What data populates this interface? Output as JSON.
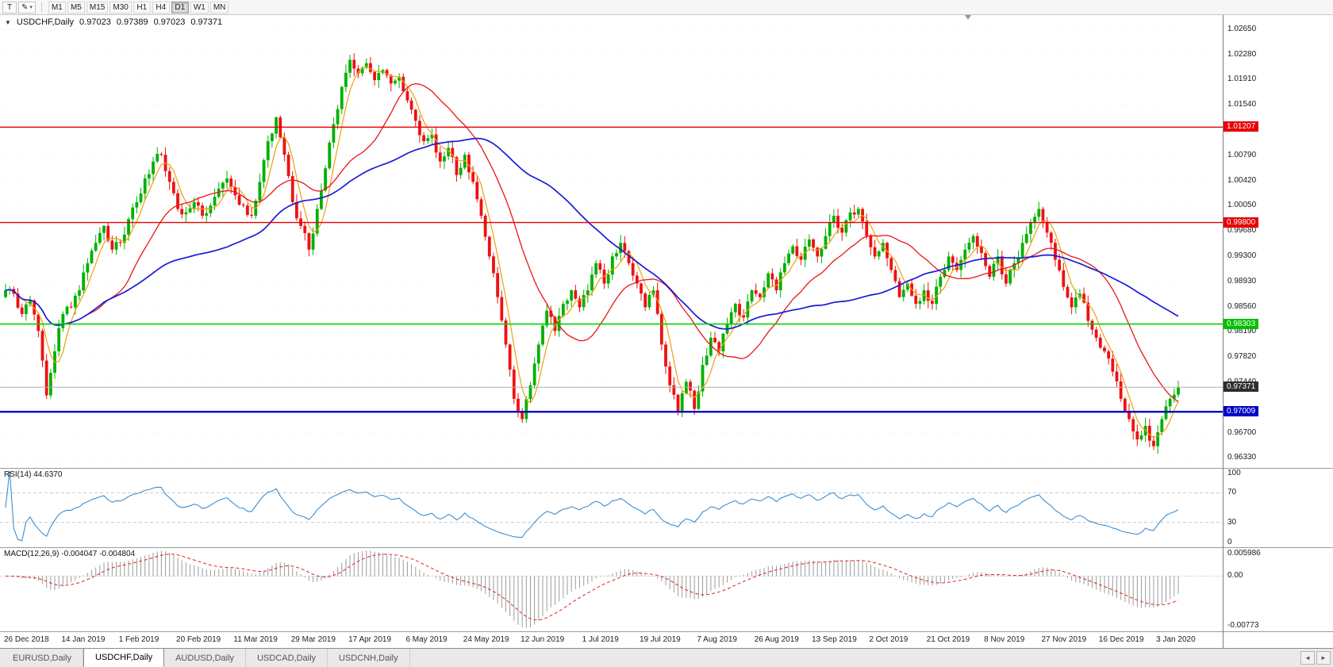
{
  "toolbar": {
    "cursor_button": "T",
    "draw_button": "✎",
    "dropdown_arrow": "▾",
    "timeframes": [
      "M1",
      "M5",
      "M15",
      "M30",
      "H1",
      "H4",
      "D1",
      "W1",
      "MN"
    ],
    "active_timeframe": "D1"
  },
  "header": {
    "collapse_arrow": "▼",
    "symbol": "USDCHF,Daily",
    "open": "0.97023",
    "high": "0.97389",
    "low": "0.97023",
    "close": "0.97371"
  },
  "chart_data": {
    "type": "candlestick",
    "symbol": "USDCHF",
    "timeframe": "Daily",
    "approximation": true,
    "colors": {
      "up": "#00b100",
      "down": "#ee1111"
    },
    "price_range": {
      "min": 0.9618,
      "max": 1.0286
    },
    "y_ticks": [
      "1.02650",
      "1.02280",
      "1.01910",
      "1.01540",
      "1.00790",
      "1.00420",
      "1.00050",
      "0.99680",
      "0.99300",
      "0.98930",
      "0.98560",
      "0.98190",
      "0.97820",
      "0.97440",
      "0.96700",
      "0.96330"
    ],
    "x_labels": [
      "26 Dec 2018",
      "14 Jan 2019",
      "1 Feb 2019",
      "20 Feb 2019",
      "11 Mar 2019",
      "29 Mar 2019",
      "17 Apr 2019",
      "6 May 2019",
      "24 May 2019",
      "12 Jun 2019",
      "1 Jul 2019",
      "19 Jul 2019",
      "7 Aug 2019",
      "26 Aug 2019",
      "13 Sep 2019",
      "2 Oct 2019",
      "21 Oct 2019",
      "8 Nov 2019",
      "27 Nov 2019",
      "16 Dec 2019",
      "3 Jan 2020"
    ],
    "closes": [
      0.988,
      0.9875,
      0.9845,
      0.9865,
      0.982,
      0.9725,
      0.979,
      0.9845,
      0.9855,
      0.988,
      0.992,
      0.995,
      0.9975,
      0.994,
      0.995,
      0.9985,
      1.001,
      1.0045,
      1.007,
      1.008,
      1.004,
      1.0,
      0.9995,
      1.001,
      0.999,
      1.0005,
      1.003,
      1.0045,
      1.002,
      1.0005,
      0.999,
      1.004,
      1.01,
      1.0135,
      1.008,
      1.001,
      0.9975,
      0.994,
      1.0,
      1.006,
      1.0125,
      1.018,
      1.022,
      1.02,
      1.0215,
      1.019,
      1.0205,
      1.0185,
      1.0195,
      1.016,
      1.013,
      1.01,
      1.011,
      1.007,
      1.009,
      1.005,
      1.008,
      1.004,
      0.999,
      0.993,
      0.987,
      0.98,
      0.972,
      0.969,
      0.974,
      0.98,
      0.985,
      0.982,
      0.986,
      0.988,
      0.9855,
      0.988,
      0.992,
      0.989,
      0.993,
      0.995,
      0.992,
      0.989,
      0.9855,
      0.988,
      0.98,
      0.974,
      0.97,
      0.9745,
      0.9705,
      0.977,
      0.981,
      0.979,
      0.983,
      0.986,
      0.984,
      0.988,
      0.987,
      0.9905,
      0.988,
      0.992,
      0.9945,
      0.9925,
      0.9955,
      0.993,
      0.996,
      0.999,
      0.9965,
      0.9995,
      1.0,
      0.996,
      0.993,
      0.995,
      0.991,
      0.987,
      0.989,
      0.986,
      0.988,
      0.986,
      0.99,
      0.993,
      0.991,
      0.994,
      0.996,
      0.9935,
      0.99,
      0.993,
      0.989,
      0.992,
      0.995,
      0.998,
      1.0,
      0.9965,
      0.9925,
      0.9885,
      0.9855,
      0.9875,
      0.9835,
      0.981,
      0.979,
      0.976,
      0.972,
      0.969,
      0.966,
      0.968,
      0.965,
      0.969,
      0.972,
      0.97371
    ],
    "overlays": {
      "horizontal_lines": [
        {
          "label": "1.01207",
          "value": 1.01207,
          "color": "#e80000",
          "width": 1.4,
          "badge": "#e80000",
          "name": "resistance-line-upper"
        },
        {
          "label": "0.99800",
          "value": 0.998,
          "color": "#e80000",
          "width": 1.4,
          "badge": "#e80000",
          "name": "resistance-line-lower"
        },
        {
          "label": "0.98303",
          "value": 0.98303,
          "color": "#00d400",
          "width": 1.6,
          "badge": "#00bf00",
          "name": "support-line-green"
        },
        {
          "label": "0.97371",
          "value": 0.97371,
          "color": "#b0b0b0",
          "width": 1.0,
          "badge": "#2e2e2e",
          "name": "bid-price-line"
        },
        {
          "label": "0.97009",
          "value": 0.97009,
          "color": "#0000c8",
          "width": 2.4,
          "badge": "#0000c8",
          "name": "support-line-blue"
        }
      ],
      "moving_averages": [
        {
          "name": "ma-fast",
          "period": 5,
          "color": "#efa00b"
        },
        {
          "name": "ma-medium",
          "period": 21,
          "color": "#e81616"
        },
        {
          "name": "ma-slow",
          "period": 55,
          "color": "#1a1ad8"
        }
      ]
    },
    "rsi": {
      "label": "RSI(14) 44.6370",
      "period": 14,
      "last": 44.637,
      "color": "#3e8ed0",
      "levels": [
        "100",
        "70",
        "30",
        "0"
      ],
      "levels_dashed": [
        70,
        30
      ]
    },
    "macd": {
      "label": "MACD(12,26,9) -0.004047 -0.004804",
      "fast": 12,
      "slow": 26,
      "signal": 9,
      "last_main": -0.004047,
      "last_signal": -0.004804,
      "hist_color": "#9b9b9b",
      "signal_color": "#e02020",
      "scale_labels": [
        "0.005986",
        "0.00",
        "-0.00773"
      ]
    }
  },
  "tabs": {
    "items": [
      "EURUSD,Daily",
      "USDCHF,Daily",
      "AUDUSD,Daily",
      "USDCAD,Daily",
      "USDCNH,Daily"
    ],
    "active_index": 1,
    "scroll_left": "◄",
    "scroll_right": "►"
  }
}
